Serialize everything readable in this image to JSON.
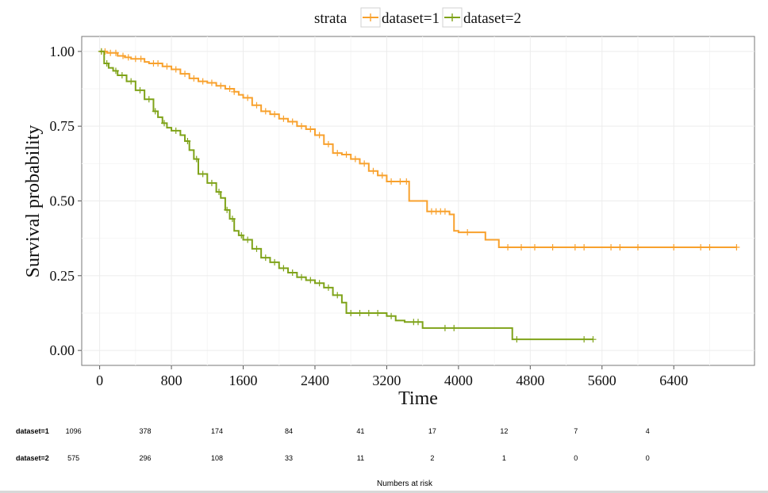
{
  "chart_data": {
    "type": "line",
    "xlabel": "Time",
    "ylabel": "Survival probability",
    "xlim": [
      -200,
      7300
    ],
    "ylim": [
      -0.05,
      1.05
    ],
    "x_ticks": [
      "0",
      "800",
      "1600",
      "2400",
      "3200",
      "4000",
      "4800",
      "5600",
      "6400"
    ],
    "y_ticks": [
      "0.00",
      "0.25",
      "0.50",
      "0.75",
      "1.00"
    ],
    "grid": true,
    "legend": {
      "title": "strata",
      "position": "top"
    },
    "series": [
      {
        "name": "dataset=1",
        "color": "#F8A12D",
        "x": [
          0,
          80,
          200,
          280,
          350,
          500,
          550,
          700,
          800,
          900,
          1000,
          1100,
          1200,
          1300,
          1400,
          1500,
          1550,
          1600,
          1700,
          1800,
          1900,
          2000,
          2100,
          2200,
          2300,
          2400,
          2500,
          2600,
          2700,
          2800,
          2900,
          3000,
          3100,
          3200,
          3400,
          3450,
          3650,
          3900,
          3950,
          4000,
          4200,
          4300,
          4400,
          4450,
          7100
        ],
        "y": [
          1.0,
          0.995,
          0.985,
          0.98,
          0.975,
          0.965,
          0.96,
          0.95,
          0.94,
          0.925,
          0.91,
          0.9,
          0.895,
          0.885,
          0.875,
          0.865,
          0.855,
          0.845,
          0.82,
          0.8,
          0.79,
          0.775,
          0.765,
          0.75,
          0.74,
          0.72,
          0.69,
          0.66,
          0.655,
          0.64,
          0.625,
          0.6,
          0.585,
          0.565,
          0.565,
          0.5,
          0.465,
          0.455,
          0.4,
          0.395,
          0.395,
          0.37,
          0.37,
          0.345,
          0.345
        ],
        "censor_x": [
          20,
          60,
          120,
          180,
          260,
          320,
          400,
          460,
          600,
          650,
          750,
          850,
          950,
          1050,
          1150,
          1250,
          1350,
          1450,
          1500,
          1650,
          1750,
          1850,
          1950,
          2050,
          2150,
          2250,
          2350,
          2450,
          2550,
          2650,
          2750,
          2850,
          2950,
          3050,
          3150,
          3250,
          3350,
          3420,
          3700,
          3750,
          3800,
          3850,
          4100,
          4550,
          4700,
          4850,
          5050,
          5300,
          5400,
          5700,
          5800,
          6000,
          6400,
          6700,
          6800,
          7100
        ]
      },
      {
        "name": "dataset=2",
        "color": "#7FA319",
        "x": [
          0,
          50,
          100,
          150,
          200,
          300,
          400,
          500,
          600,
          650,
          700,
          750,
          800,
          900,
          950,
          1000,
          1050,
          1100,
          1200,
          1300,
          1350,
          1400,
          1450,
          1500,
          1550,
          1600,
          1700,
          1800,
          1900,
          2000,
          2100,
          2200,
          2300,
          2400,
          2500,
          2600,
          2700,
          2750,
          3200,
          3300,
          3400,
          3600,
          4600,
          5500
        ],
        "y": [
          1.0,
          0.96,
          0.945,
          0.935,
          0.92,
          0.9,
          0.87,
          0.84,
          0.8,
          0.78,
          0.76,
          0.745,
          0.735,
          0.72,
          0.7,
          0.67,
          0.64,
          0.59,
          0.56,
          0.53,
          0.51,
          0.47,
          0.44,
          0.4,
          0.385,
          0.37,
          0.34,
          0.31,
          0.295,
          0.275,
          0.26,
          0.245,
          0.235,
          0.225,
          0.21,
          0.185,
          0.16,
          0.125,
          0.115,
          0.1,
          0.095,
          0.075,
          0.037,
          0.037
        ],
        "censor_x": [
          20,
          80,
          180,
          250,
          350,
          450,
          550,
          620,
          720,
          850,
          980,
          1080,
          1150,
          1250,
          1330,
          1420,
          1480,
          1580,
          1650,
          1750,
          1850,
          1950,
          2050,
          2150,
          2250,
          2350,
          2450,
          2550,
          2650,
          2800,
          2900,
          3000,
          3100,
          3250,
          3500,
          3550,
          3850,
          3950,
          4650,
          5400,
          5500
        ]
      }
    ]
  },
  "risk_table": {
    "title": "Numbers at risk",
    "time_points": [
      0,
      800,
      1600,
      2400,
      3200,
      4000,
      4800,
      5600,
      6400
    ],
    "rows": [
      {
        "label": "dataset=1",
        "values": [
          "1096",
          "378",
          "174",
          "84",
          "41",
          "17",
          "12",
          "7",
          "4"
        ]
      },
      {
        "label": "dataset=2",
        "values": [
          "575",
          "296",
          "108",
          "33",
          "11",
          "2",
          "1",
          "0",
          "0"
        ]
      }
    ]
  }
}
